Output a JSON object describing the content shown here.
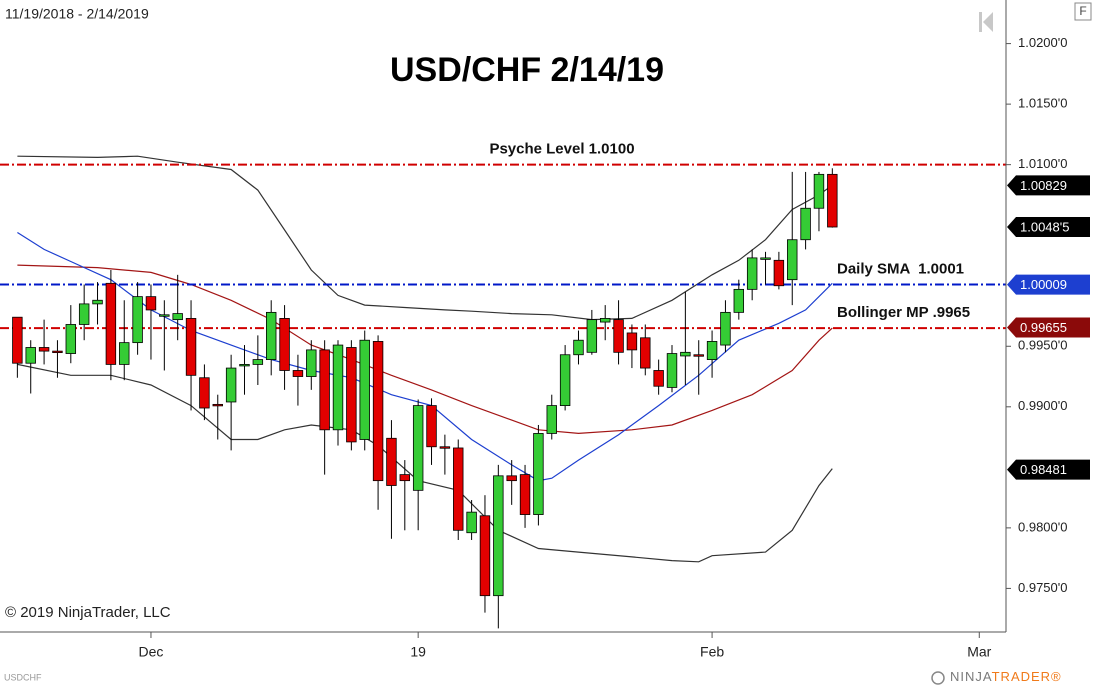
{
  "chart_data": {
    "type": "candlestick",
    "date_range": "11/19/2018 - 2/14/2019",
    "title": "USD/CHF 2/14/19",
    "copyright": "© 2019 NinjaTrader, LLC",
    "symbol": "USDCHF",
    "panel_button": "F",
    "logo": [
      "NINJA",
      "TRADER®"
    ],
    "up_color": "#35cc35",
    "down_color": "#e20000",
    "xlim": [
      -1.3,
      74
    ],
    "ylim": [
      0.9714,
      1.0236
    ],
    "xticks": [
      {
        "value": 10,
        "label": "Dec"
      },
      {
        "value": 30,
        "label": "19"
      },
      {
        "value": 52,
        "label": "Feb"
      },
      {
        "value": 72,
        "label": "Mar"
      }
    ],
    "yticks": [
      {
        "value": 1.02,
        "label": "1.0200'0"
      },
      {
        "value": 1.015,
        "label": "1.0150'0"
      },
      {
        "value": 1.01,
        "label": "1.0100'0"
      },
      {
        "value": 0.995,
        "label": "0.9950'0"
      },
      {
        "value": 0.99,
        "label": "0.9900'0"
      },
      {
        "value": 0.98,
        "label": "0.9800'0"
      },
      {
        "value": 0.975,
        "label": "0.9750'0"
      }
    ],
    "open": [
      0.9974,
      0.9936,
      0.9949,
      0.9946,
      0.9944,
      0.9968,
      0.9985,
      1.0002,
      0.9935,
      0.9953,
      0.9991,
      0.9975,
      0.9972,
      0.9973,
      0.9924,
      0.9902,
      0.9904,
      0.9934,
      0.9935,
      0.9939,
      0.9973,
      0.993,
      0.9925,
      0.9947,
      0.9881,
      0.9949,
      0.9873,
      0.9954,
      0.9874,
      0.9844,
      0.9831,
      0.9901,
      0.9867,
      0.9866,
      0.9796,
      0.981,
      0.9744,
      0.9843,
      0.9844,
      0.9811,
      0.9878,
      0.9901,
      0.9943,
      0.9945,
      0.997,
      0.9972,
      0.9961,
      0.9957,
      0.993,
      0.9916,
      0.9942,
      0.9943,
      0.9939,
      0.9951,
      0.9978,
      0.9997,
      1.0022,
      1.0021,
      1.0005,
      1.0038,
      1.0064,
      1.0092
    ],
    "high": [
      0.9974,
      0.9955,
      0.9972,
      0.9955,
      0.9984,
      1.0001,
      1.0003,
      1.0013,
      0.9988,
      1.0003,
      1.0001,
      0.9988,
      1.0009,
      0.9988,
      0.9935,
      0.991,
      0.9943,
      0.9951,
      0.9959,
      0.9988,
      0.9984,
      0.9943,
      0.9955,
      0.9955,
      0.9955,
      0.9955,
      0.9963,
      0.9959,
      0.9889,
      0.9856,
      0.9906,
      0.9907,
      0.9877,
      0.9873,
      0.9823,
      0.9827,
      0.9852,
      0.9856,
      0.9852,
      0.9885,
      0.991,
      0.9951,
      0.9963,
      0.998,
      0.9984,
      0.9988,
      0.9968,
      0.9968,
      0.9939,
      0.9951,
      0.9995,
      0.9955,
      0.9963,
      0.9988,
      1.0005,
      1.003,
      1.0028,
      1.0028,
      1.0094,
      1.0094,
      1.0094,
      1.0097
    ],
    "low": [
      0.9924,
      0.9911,
      0.9935,
      0.9924,
      0.9936,
      0.9955,
      0.9968,
      0.9922,
      0.9922,
      0.9943,
      0.9939,
      0.993,
      0.9955,
      0.9897,
      0.9889,
      0.9873,
      0.9864,
      0.991,
      0.9918,
      0.9926,
      0.9914,
      0.9901,
      0.9914,
      0.9844,
      0.9868,
      0.9864,
      0.9864,
      0.9815,
      0.9791,
      0.9798,
      0.9798,
      0.9852,
      0.9844,
      0.979,
      0.979,
      0.973,
      0.9717,
      0.9819,
      0.98,
      0.9802,
      0.9873,
      0.9897,
      0.9935,
      0.9943,
      0.9955,
      0.9935,
      0.9932,
      0.9926,
      0.991,
      0.9912,
      0.9918,
      0.991,
      0.9924,
      0.9945,
      0.9972,
      0.9988,
      1.0001,
      0.9997,
      0.9984,
      1.003,
      1.0045,
      1.0048
    ],
    "close": [
      0.9936,
      0.9949,
      0.9946,
      0.9945,
      0.9968,
      0.9985,
      0.9988,
      0.9935,
      0.9953,
      0.9991,
      0.998,
      0.9976,
      0.9977,
      0.9926,
      0.9899,
      0.9901,
      0.9932,
      0.9935,
      0.9939,
      0.9978,
      0.993,
      0.9925,
      0.9947,
      0.9881,
      0.9951,
      0.9871,
      0.9955,
      0.9839,
      0.9835,
      0.9839,
      0.9901,
      0.9867,
      0.9866,
      0.9798,
      0.9813,
      0.9744,
      0.9843,
      0.9839,
      0.9811,
      0.9878,
      0.9901,
      0.9943,
      0.9955,
      0.9972,
      0.9973,
      0.9945,
      0.9947,
      0.9932,
      0.9917,
      0.9944,
      0.9945,
      0.9942,
      0.9954,
      0.9978,
      0.9997,
      1.0023,
      1.0023,
      1.0,
      1.0038,
      1.0064,
      1.0092,
      1.00485
    ],
    "lines": [
      {
        "color": "#333333",
        "x": [
          0,
          6,
          9,
          12,
          16,
          18,
          20,
          22,
          24,
          26,
          29,
          32,
          34,
          37,
          40,
          43,
          46,
          49,
          52,
          54,
          56,
          58,
          60,
          61
        ],
        "values": [
          1.0107,
          1.0106,
          1.0107,
          1.0102,
          1.0096,
          1.0079,
          1.0046,
          1.0013,
          0.9992,
          0.9984,
          0.9982,
          0.998,
          0.9979,
          0.9977,
          0.9976,
          0.9972,
          0.9973,
          0.9988,
          1.0009,
          1.0021,
          1.0038,
          1.0063,
          1.0075,
          1.0083
        ]
      },
      {
        "color": "#a31515",
        "x": [
          0,
          6,
          10,
          13,
          16,
          19,
          22,
          25,
          28,
          31,
          34,
          37,
          39,
          42,
          46,
          49,
          52,
          55,
          58,
          60,
          61
        ],
        "values": [
          1.0017,
          1.0015,
          1.0011,
          1.0001,
          0.9988,
          0.9972,
          0.9951,
          0.9939,
          0.9926,
          0.9914,
          0.9901,
          0.9889,
          0.9881,
          0.9878,
          0.9881,
          0.9885,
          0.9897,
          0.991,
          0.993,
          0.9955,
          0.9965
        ]
      },
      {
        "color": "#333333",
        "x": [
          0,
          4,
          7,
          10,
          13,
          16,
          18,
          20,
          22,
          25,
          27,
          30,
          33,
          36,
          39,
          42,
          46,
          49,
          51,
          52,
          56,
          58,
          60,
          61
        ],
        "values": [
          0.9935,
          0.9926,
          0.9926,
          0.9918,
          0.9901,
          0.9873,
          0.9873,
          0.9881,
          0.9885,
          0.9881,
          0.9868,
          0.9839,
          0.9831,
          0.9798,
          0.9783,
          0.978,
          0.9776,
          0.9773,
          0.9772,
          0.9777,
          0.978,
          0.9798,
          0.9835,
          0.9849
        ]
      },
      {
        "color": "#1d3fd0",
        "x": [
          0,
          2,
          4,
          7,
          10,
          13,
          16,
          19,
          22,
          25,
          28,
          31,
          34,
          37,
          39,
          40,
          42,
          45,
          48,
          51,
          54,
          57,
          59,
          61
        ],
        "values": [
          1.0044,
          1.003,
          1.002,
          1.0005,
          0.998,
          0.9963,
          0.9951,
          0.9939,
          0.993,
          0.9924,
          0.991,
          0.9901,
          0.9873,
          0.9852,
          0.9839,
          0.9841,
          0.9856,
          0.9877,
          0.9901,
          0.9926,
          0.9955,
          0.9969,
          0.998,
          1.0002
        ]
      }
    ],
    "levels": [
      {
        "value": 1.01,
        "color": "#d00000",
        "label": "Psyche Level 1.0100"
      },
      {
        "value": 1.0001,
        "color": "#0018c8",
        "label": "Daily SMA  1.0001"
      },
      {
        "value": 0.9965,
        "color": "#d00000",
        "label": "Bollinger MP .9965"
      }
    ],
    "price_badges": [
      {
        "value": 1.00829,
        "label": "1.00829",
        "color": "#000000"
      },
      {
        "value": 1.00485,
        "label": "1.0048'5",
        "color": "#000000"
      },
      {
        "value": 1.00009,
        "label": "1.00009",
        "color": "#1d3fd0"
      },
      {
        "value": 0.99655,
        "label": "0.99655",
        "color": "#8b0a0a"
      },
      {
        "value": 0.98481,
        "label": "0.98481",
        "color": "#000000"
      }
    ]
  }
}
